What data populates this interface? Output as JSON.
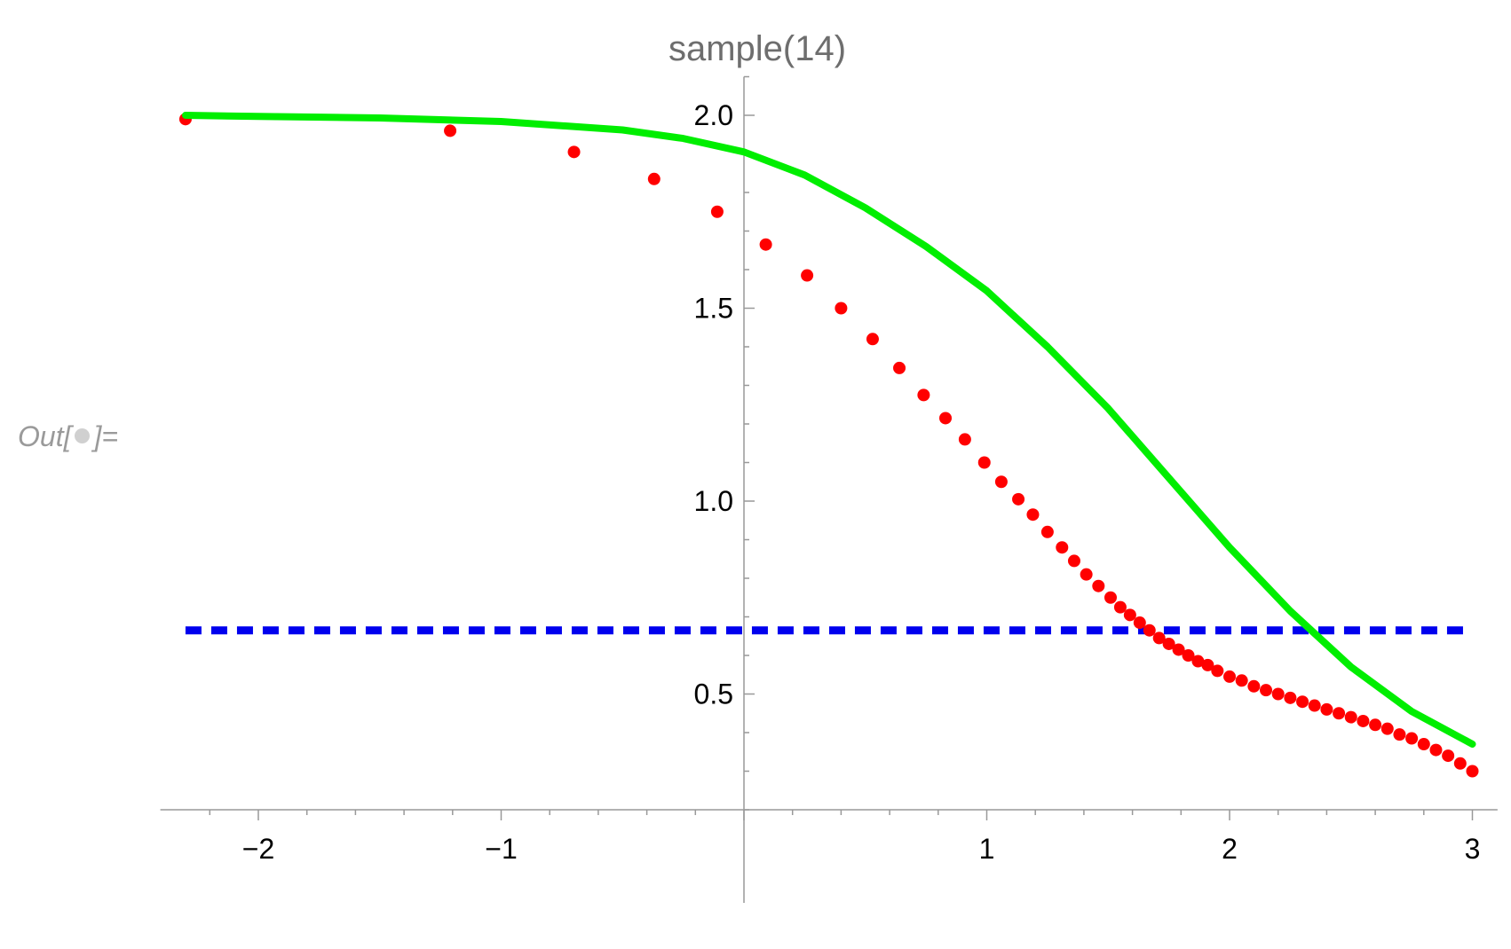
{
  "cell_label": {
    "prefix": "Out[",
    "suffix": "]="
  },
  "chart_data": {
    "type": "line",
    "title": "sample(14)",
    "xlabel": "",
    "ylabel": "",
    "xlim": [
      -2.4,
      3.1
    ],
    "ylim": [
      0.0,
      2.1
    ],
    "x_ticks": [
      -2,
      -1,
      1,
      2,
      3
    ],
    "x_tick_labels": [
      "−2",
      "−1",
      "1",
      "2",
      "3"
    ],
    "y_ticks": [
      0.5,
      1.0,
      1.5,
      2.0
    ],
    "y_tick_labels": [
      "0.5",
      "1.0",
      "1.5",
      "2.0"
    ],
    "grid": false,
    "colors": {
      "curve": "#00ee00",
      "points": "#ff0000",
      "reference": "#0000ee",
      "axis": "#999999"
    },
    "series": [
      {
        "style": "solid-line",
        "x": [
          -2.3,
          -2.0,
          -1.5,
          -1.0,
          -0.5,
          -0.25,
          0.0,
          0.25,
          0.5,
          0.75,
          1.0,
          1.25,
          1.5,
          1.75,
          2.0,
          2.25,
          2.5,
          2.75,
          3.0
        ],
        "y": [
          2.0,
          1.997,
          1.993,
          1.984,
          1.962,
          1.94,
          1.905,
          1.845,
          1.76,
          1.66,
          1.545,
          1.4,
          1.24,
          1.06,
          0.88,
          0.715,
          0.57,
          0.455,
          0.37
        ]
      },
      {
        "style": "points",
        "x": [
          -2.3,
          -1.21,
          -0.7,
          -0.37,
          -0.11,
          0.09,
          0.26,
          0.4,
          0.53,
          0.64,
          0.74,
          0.83,
          0.91,
          0.99,
          1.06,
          1.13,
          1.19,
          1.25,
          1.31,
          1.36,
          1.41,
          1.46,
          1.51,
          1.55,
          1.59,
          1.63,
          1.67,
          1.71,
          1.75,
          1.79,
          1.83,
          1.87,
          1.91,
          1.95,
          2.0,
          2.05,
          2.1,
          2.15,
          2.2,
          2.25,
          2.3,
          2.35,
          2.4,
          2.45,
          2.5,
          2.55,
          2.6,
          2.65,
          2.7,
          2.75,
          2.8,
          2.85,
          2.9,
          2.95,
          3.0
        ],
        "y": [
          1.99,
          1.96,
          1.905,
          1.835,
          1.75,
          1.665,
          1.585,
          1.5,
          1.42,
          1.345,
          1.275,
          1.215,
          1.16,
          1.1,
          1.05,
          1.005,
          0.965,
          0.92,
          0.88,
          0.845,
          0.81,
          0.78,
          0.75,
          0.725,
          0.705,
          0.685,
          0.665,
          0.645,
          0.63,
          0.615,
          0.6,
          0.585,
          0.575,
          0.56,
          0.545,
          0.535,
          0.52,
          0.51,
          0.5,
          0.49,
          0.48,
          0.47,
          0.46,
          0.45,
          0.44,
          0.43,
          0.42,
          0.41,
          0.395,
          0.385,
          0.37,
          0.355,
          0.34,
          0.32,
          0.3
        ]
      },
      {
        "style": "dashed-line",
        "x": [
          -2.3,
          3.0
        ],
        "y": [
          0.665,
          0.665
        ]
      }
    ]
  }
}
